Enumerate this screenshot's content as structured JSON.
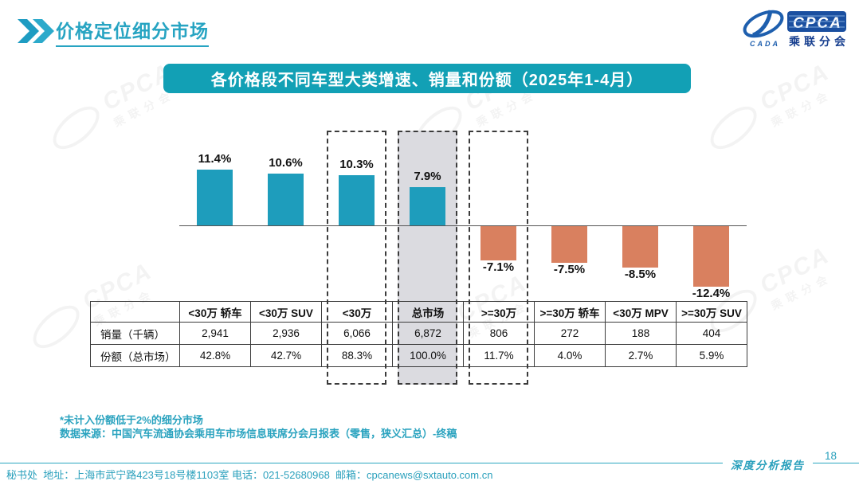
{
  "header": {
    "title": "价格定位细分市场",
    "logo": {
      "cada": "CADA",
      "cpca": "CPCA",
      "subtitle": "乘联分会"
    }
  },
  "banner": {
    "text": "各价格段不同车型大类增速、销量和份额（2025年1-4月）"
  },
  "chart_data": {
    "type": "bar",
    "title": "各价格段不同车型大类增速、销量和份额（2025年1-4月）",
    "categories": [
      "<30万 轿车",
      "<30万 SUV",
      "<30万",
      "总市场",
      ">=30万",
      ">=30万 轿车",
      "<30万 MPV",
      ">=30万 SUV"
    ],
    "series": [
      {
        "name": "增速",
        "values": [
          11.4,
          10.6,
          10.3,
          7.9,
          -7.1,
          -7.5,
          -8.5,
          -12.4
        ],
        "labels": [
          "11.4%",
          "10.6%",
          "10.3%",
          "7.9%",
          "-7.1%",
          "-7.5%",
          "-8.5%",
          "-12.4%"
        ]
      }
    ],
    "table": {
      "rows": [
        {
          "label": "销量（千辆）",
          "values": [
            "2,941",
            "2,936",
            "6,066",
            "6,872",
            "806",
            "272",
            "188",
            "404"
          ]
        },
        {
          "label": "份额（总市场）",
          "values": [
            "42.8%",
            "42.7%",
            "88.3%",
            "100.0%",
            "11.7%",
            "4.0%",
            "2.7%",
            "5.9%"
          ]
        }
      ]
    },
    "highlight": {
      "dashed_indices": [
        2,
        3,
        4
      ],
      "gray_index": 3
    },
    "colors": {
      "positive": "#1E9DBC",
      "negative": "#D9805F"
    },
    "ylim": [
      -14,
      14
    ],
    "grid": false,
    "legend": "none",
    "value_label_format": "percent"
  },
  "notes": [
    "*未计入份额低于2%的细分市场",
    "数据来源：中国汽车流通协会乘用车市场信息联席分会月报表（零售，狭义汇总）-终稿"
  ],
  "footer": {
    "contact": "秘书处  地址：上海市武宁路423号18号楼1103室 电话：021-52680968  邮箱：cpcanews@sxtauto.com.cn",
    "page_number": "18",
    "report_label": "深度分析报告"
  },
  "watermark": {
    "cpca": "CPCA",
    "subtitle": "乘联分会"
  }
}
